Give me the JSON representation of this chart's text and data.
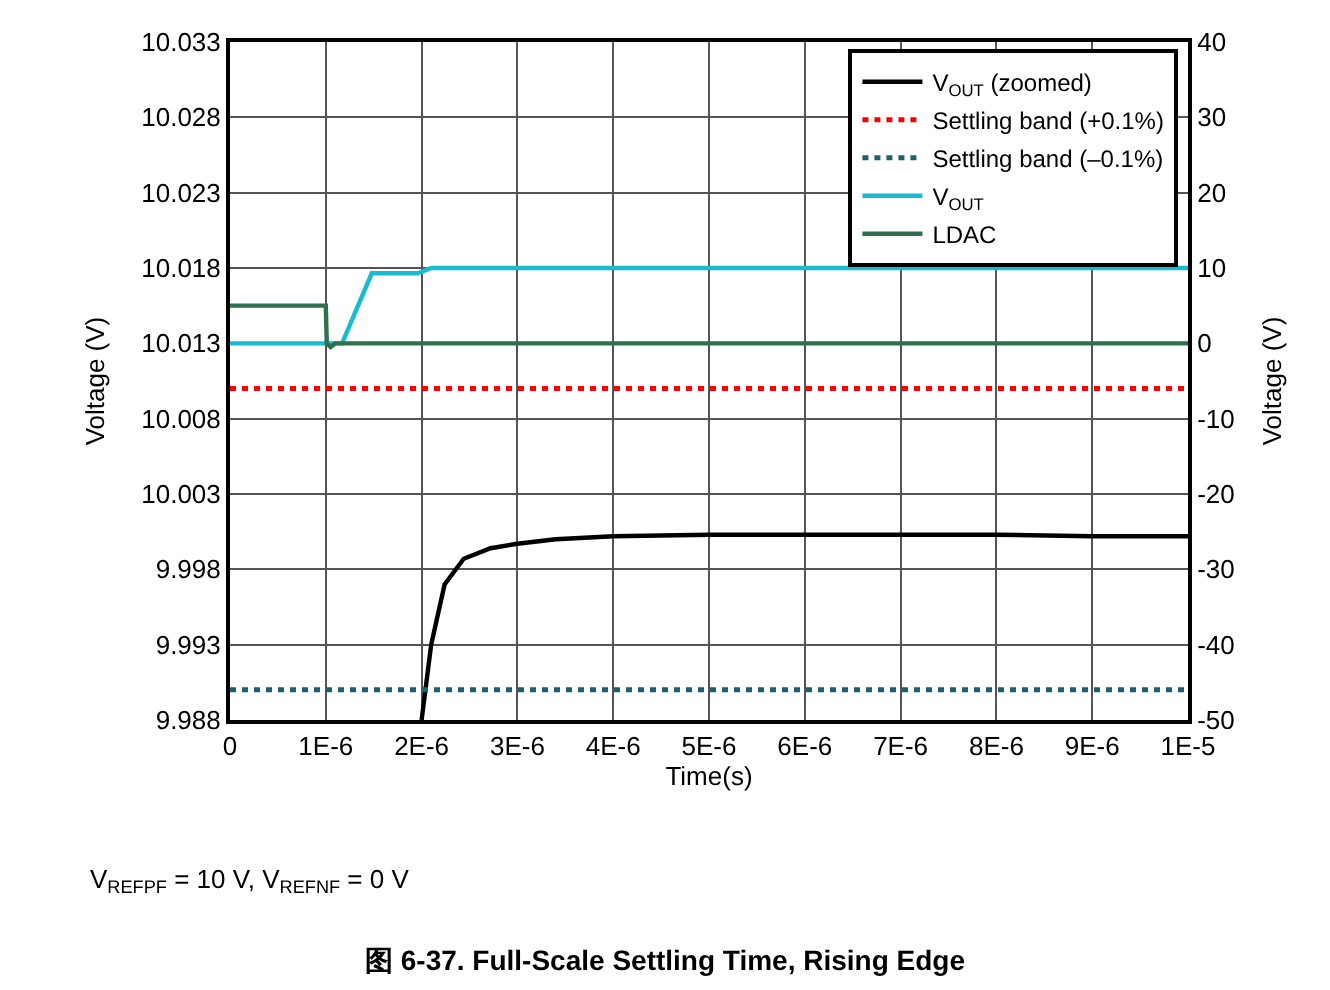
{
  "chart_data": {
    "type": "line",
    "title": "图 6-37. Full-Scale Settling Time, Rising Edge",
    "xlabel": "Time(s)",
    "ylabel": "Voltage (V)",
    "y2label": "Voltage (V)",
    "annotations": [
      "V$_{REFPF}$ = 10 V, V$_{REFNF}$ = 0 V"
    ],
    "xlim": [
      0,
      1e-05
    ],
    "xticks": [
      0,
      {
        "value": 1e-06,
        "label": "1E-6"
      },
      {
        "value": 2e-06,
        "label": "2E-6"
      },
      {
        "value": 3e-06,
        "label": "3E-6"
      },
      {
        "value": 4e-06,
        "label": "4E-6"
      },
      {
        "value": 5e-06,
        "label": "5E-6"
      },
      {
        "value": 6e-06,
        "label": "6E-6"
      },
      {
        "value": 7e-06,
        "label": "7E-6"
      },
      {
        "value": 8e-06,
        "label": "8E-6"
      },
      {
        "value": 9e-06,
        "label": "9E-6"
      },
      {
        "value": 1e-05,
        "label": "1E-5"
      }
    ],
    "ylim": [
      9.988,
      10.033
    ],
    "yticks": [
      9.988,
      9.993,
      9.998,
      10.003,
      10.008,
      10.013,
      10.018,
      10.023,
      10.028,
      10.033
    ],
    "y2lim": [
      -50,
      40
    ],
    "y2ticks": [
      -50,
      -40,
      -30,
      -20,
      -10,
      0,
      10,
      20,
      30,
      40
    ],
    "grid": true,
    "legend": "top right",
    "marker": "none",
    "series": [
      {
        "name": "V$_{OUT}$ (zoomed)",
        "color": "#000000",
        "line_style": "solid",
        "x": [
          2e-06,
          2.1e-06,
          2.24e-06,
          2.44e-06,
          2.72e-06,
          3e-06,
          3.4e-06,
          4e-06,
          5e-06,
          6e-06,
          7e-06,
          8e-06,
          9e-06,
          1e-05
        ],
        "values": [
          9.988,
          9.993,
          9.997,
          9.9987,
          9.9994,
          9.9997,
          10.0,
          10.0002,
          10.0003,
          10.0003,
          10.0003,
          10.0003,
          10.0002,
          10.0002
        ]
      },
      {
        "name": "Settling band (+0.1%)",
        "color": "#ff0000",
        "line_style": "dotted",
        "x": [
          0,
          1e-05
        ],
        "values": [
          10.01,
          10.01
        ]
      },
      {
        "name": "Settling band (–0.1%)",
        "color": "#1f5f6f",
        "line_style": "dotted",
        "x": [
          0,
          1e-05
        ],
        "values": [
          9.99,
          9.99
        ]
      },
      {
        "name": "V$_{OUT}$",
        "color": "#17bcd0",
        "line_style": "solid",
        "axis": "y2",
        "x": [
          0,
          1.17e-06,
          1.48e-06,
          1.96e-06,
          2.1e-06,
          1e-05
        ],
        "values": [
          0,
          0,
          9.3,
          9.3,
          10,
          10
        ]
      },
      {
        "name": "LDAC",
        "color": "#2e7050",
        "line_style": "solid",
        "axis": "y2",
        "x": [
          0,
          1e-06,
          1.01e-06,
          1.05e-06,
          1.1e-06,
          1e-05
        ],
        "values": [
          5,
          5,
          0,
          -0.5,
          0,
          0
        ]
      }
    ]
  }
}
